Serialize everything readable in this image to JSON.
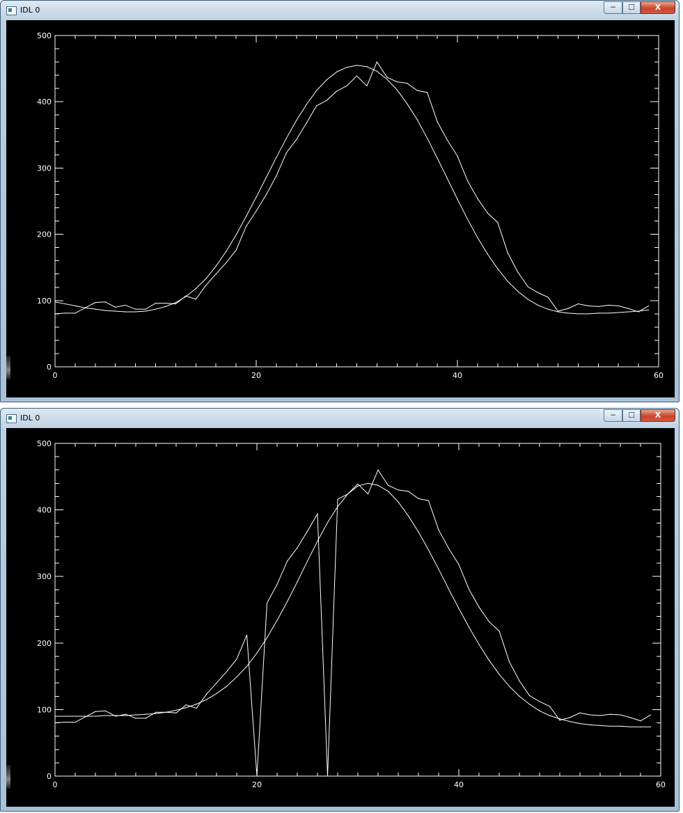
{
  "windows": [
    {
      "title": "IDL 0",
      "controls": {
        "minimize": "─",
        "maximize": "☐",
        "close": "X"
      },
      "chart_data": {
        "type": "line",
        "title": "",
        "xlabel": "",
        "ylabel": "",
        "xlim": [
          0,
          60
        ],
        "ylim": [
          0,
          500
        ],
        "x_ticks": [
          0,
          20,
          40,
          60
        ],
        "y_ticks": [
          0,
          100,
          200,
          300,
          400,
          500
        ],
        "grid": false,
        "series": [
          {
            "style": "data",
            "x": [
              0,
              1,
              2,
              3,
              4,
              5,
              6,
              7,
              8,
              9,
              10,
              11,
              12,
              13,
              14,
              15,
              16,
              17,
              18,
              19,
              20,
              21,
              22,
              23,
              24,
              25,
              26,
              27,
              28,
              29,
              30,
              31,
              32,
              33,
              34,
              35,
              36,
              37,
              38,
              39,
              40,
              41,
              42,
              43,
              44,
              45,
              46,
              47,
              48,
              49,
              50,
              51,
              52,
              53,
              54,
              55,
              56,
              57,
              58,
              59
            ],
            "y": [
              80,
              81,
              81,
              89,
              97,
              98,
              90,
              93,
              87,
              87,
              96,
              96,
              95,
              107,
              102,
              123,
              140,
              157,
              176,
              212,
              235,
              260,
              288,
              323,
              343,
              368,
              394,
              402,
              416,
              424,
              439,
              424,
              460,
              437,
              430,
              428,
              417,
              414,
              370,
              342,
              318,
              281,
              254,
              232,
              218,
              172,
              143,
              121,
              112,
              105,
              84,
              88,
              95,
              92,
              91,
              93,
              92,
              88,
              83,
              92
            ]
          },
          {
            "style": "fit",
            "x": [
              0,
              1,
              2,
              3,
              4,
              5,
              6,
              7,
              8,
              9,
              10,
              11,
              12,
              13,
              14,
              15,
              16,
              17,
              18,
              19,
              20,
              21,
              22,
              23,
              24,
              25,
              26,
              27,
              28,
              29,
              30,
              31,
              32,
              33,
              34,
              35,
              36,
              37,
              38,
              39,
              40,
              41,
              42,
              43,
              44,
              45,
              46,
              47,
              48,
              49,
              50,
              51,
              52,
              53,
              54,
              55,
              56,
              57,
              58,
              59
            ],
            "y": [
              98,
              95,
              92,
              89,
              87,
              85,
              84,
              83,
              83,
              84,
              87,
              91,
              97,
              106,
              118,
              133,
              152,
              174,
              199,
              227,
              256,
              286,
              316,
              345,
              372,
              396,
              417,
              433,
              445,
              452,
              455,
              453,
              446,
              434,
              418,
              397,
              373,
              345,
              315,
              284,
              253,
              223,
              195,
              170,
              148,
              129,
              114,
              102,
              93,
              87,
              83,
              81,
              80,
              80,
              81,
              81,
              82,
              83,
              84,
              86
            ]
          }
        ]
      }
    },
    {
      "title": "IDL 0",
      "controls": {
        "minimize": "─",
        "maximize": "☐",
        "close": "X"
      },
      "chart_data": {
        "type": "line",
        "title": "",
        "xlabel": "",
        "ylabel": "",
        "xlim": [
          0,
          60
        ],
        "ylim": [
          0,
          500
        ],
        "x_ticks": [
          0,
          20,
          40,
          60
        ],
        "y_ticks": [
          0,
          100,
          200,
          300,
          400,
          500
        ],
        "grid": false,
        "series": [
          {
            "style": "data",
            "x": [
              0,
              1,
              2,
              3,
              4,
              5,
              6,
              7,
              8,
              9,
              10,
              11,
              12,
              13,
              14,
              15,
              16,
              17,
              18,
              19,
              20,
              21,
              22,
              23,
              24,
              25,
              26,
              27,
              28,
              29,
              30,
              31,
              32,
              33,
              34,
              35,
              36,
              37,
              38,
              39,
              40,
              41,
              42,
              43,
              44,
              45,
              46,
              47,
              48,
              49,
              50,
              51,
              52,
              53,
              54,
              55,
              56,
              57,
              58,
              59
            ],
            "y": [
              80,
              81,
              81,
              89,
              97,
              98,
              90,
              93,
              87,
              87,
              96,
              96,
              95,
              107,
              102,
              123,
              140,
              157,
              176,
              212,
              0,
              260,
              288,
              323,
              343,
              368,
              394,
              0,
              416,
              424,
              439,
              424,
              460,
              437,
              430,
              428,
              417,
              414,
              370,
              342,
              318,
              281,
              254,
              232,
              218,
              172,
              143,
              121,
              112,
              105,
              84,
              88,
              95,
              92,
              91,
              93,
              92,
              88,
              83,
              92
            ]
          },
          {
            "style": "fit",
            "x": [
              0,
              1,
              2,
              3,
              4,
              5,
              6,
              7,
              8,
              9,
              10,
              11,
              12,
              13,
              14,
              15,
              16,
              17,
              18,
              19,
              20,
              21,
              22,
              23,
              24,
              25,
              26,
              27,
              28,
              29,
              30,
              31,
              32,
              33,
              34,
              35,
              36,
              37,
              38,
              39,
              40,
              41,
              42,
              43,
              44,
              45,
              46,
              47,
              48,
              49,
              50,
              51,
              52,
              53,
              54,
              55,
              56,
              57,
              58,
              59
            ],
            "y": [
              90,
              90,
              90,
              90,
              90,
              91,
              91,
              91,
              92,
              93,
              94,
              96,
              99,
              103,
              108,
              115,
              124,
              135,
              149,
              165,
              185,
              208,
              234,
              262,
              292,
              323,
              353,
              381,
              405,
              424,
              436,
              440,
              437,
              428,
              412,
              391,
              367,
              340,
              311,
              281,
              252,
              224,
              198,
              174,
              153,
              135,
              120,
              108,
              98,
              91,
              86,
              82,
              79,
              77,
              76,
              75,
              75,
              74,
              74,
              74
            ]
          }
        ]
      }
    }
  ]
}
